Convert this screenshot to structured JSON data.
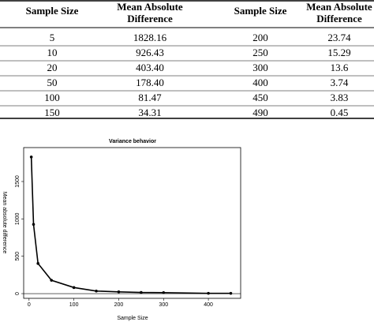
{
  "table": {
    "header": [
      "Sample Size",
      "Mean Absolute Difference",
      "Sample Size",
      "Mean Absolute Difference"
    ],
    "rows": [
      [
        "5",
        "1828.16",
        "200",
        "23.74"
      ],
      [
        "10",
        "926.43",
        "250",
        "15.29"
      ],
      [
        "20",
        "403.40",
        "300",
        "13.6"
      ],
      [
        "50",
        "178.40",
        "400",
        "3.74"
      ],
      [
        "100",
        "81.47",
        "450",
        "3.83"
      ],
      [
        "150",
        "34.31",
        "490",
        "0.45"
      ]
    ]
  },
  "chart_data": {
    "type": "line",
    "title": "Variance behavior",
    "x_label": "Sample Size",
    "y_label": "Mean absolute difference",
    "x": [
      5,
      10,
      20,
      50,
      100,
      150,
      200,
      250,
      300,
      400,
      450
    ],
    "values": [
      1828.16,
      926.43,
      403.4,
      178.4,
      81.47,
      34.31,
      23.74,
      15.29,
      13.6,
      3.74,
      3.83
    ],
    "color": "#000000",
    "xlim": [
      -12,
      472
    ],
    "ylim": [
      -63,
      1954
    ],
    "xticks": [
      0,
      100,
      200,
      300,
      400
    ],
    "yticks": [
      0,
      500,
      1000,
      1500
    ],
    "hline": 0
  }
}
